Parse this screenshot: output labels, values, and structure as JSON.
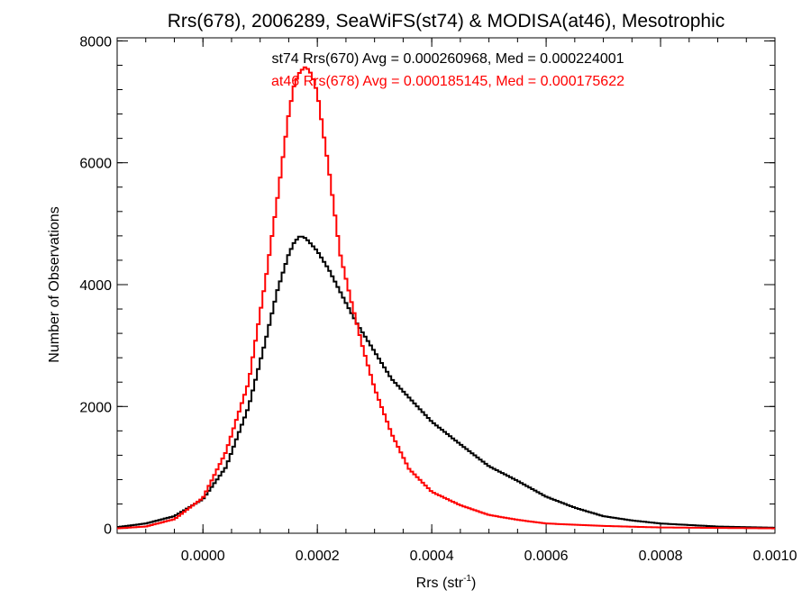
{
  "chart_data": {
    "type": "line",
    "title": "Rrs(678), 2006289, SeaWiFS(st74) & MODISA(at46), Mesotrophic",
    "xlabel": "Rrs (str",
    "xlabel_sup": "-1",
    "xlabel_close": ")",
    "ylabel": "Number of Observations",
    "xlim": [
      -0.00015,
      0.001
    ],
    "ylim": [
      -80,
      8050
    ],
    "xticks": [
      0.0,
      0.0002,
      0.0004,
      0.0006,
      0.0008,
      0.001
    ],
    "xtick_labels": [
      "0.0000",
      "0.0002",
      "0.0004",
      "0.0006",
      "0.0008",
      "0.0010"
    ],
    "yticks": [
      0,
      2000,
      4000,
      6000,
      8000
    ],
    "ytick_labels": [
      "0",
      "2000",
      "4000",
      "6000",
      "8000"
    ],
    "grid": false,
    "legend": "top-center",
    "series": [
      {
        "name": "st74 Rrs(670)",
        "label": "st74 Rrs(670) Avg = 0.000260968, Med = 0.000224001",
        "color": "#000000",
        "x": [
          -0.00015,
          -0.0001,
          -5e-05,
          0.0,
          4e-05,
          8e-05,
          0.00011,
          0.00013,
          0.00015,
          0.00016,
          0.00017,
          0.00018,
          0.0002,
          0.00022,
          0.00025,
          0.00027,
          0.0003,
          0.00033,
          0.00036,
          0.0004,
          0.00045,
          0.0005,
          0.00055,
          0.0006,
          0.00065,
          0.0007,
          0.00075,
          0.0008,
          0.0009,
          0.001
        ],
        "values": [
          20,
          80,
          200,
          480,
          1000,
          2000,
          3100,
          3900,
          4500,
          4700,
          4800,
          4760,
          4550,
          4250,
          3700,
          3350,
          2900,
          2450,
          2150,
          1750,
          1380,
          1020,
          780,
          520,
          340,
          200,
          130,
          80,
          30,
          10
        ]
      },
      {
        "name": "at46 Rrs(678)",
        "label": "at46 Rrs(678) Avg = 0.000185145, Med = 0.000175622",
        "color": "#ff0000",
        "x": [
          -0.00015,
          -0.0001,
          -5e-05,
          0.0,
          4e-05,
          8e-05,
          0.00011,
          0.00013,
          0.00015,
          0.00016,
          0.00017,
          0.00018,
          0.00019,
          0.0002,
          0.00022,
          0.00024,
          0.00026,
          0.00028,
          0.0003,
          0.00033,
          0.00036,
          0.0004,
          0.00045,
          0.0005,
          0.00055,
          0.0006,
          0.0007,
          0.0008,
          0.001
        ],
        "values": [
          0,
          30,
          150,
          500,
          1250,
          2400,
          4100,
          5400,
          6800,
          7300,
          7500,
          7580,
          7450,
          7150,
          5900,
          4500,
          3700,
          2950,
          2300,
          1550,
          980,
          600,
          380,
          220,
          140,
          80,
          40,
          15,
          0
        ]
      }
    ]
  }
}
